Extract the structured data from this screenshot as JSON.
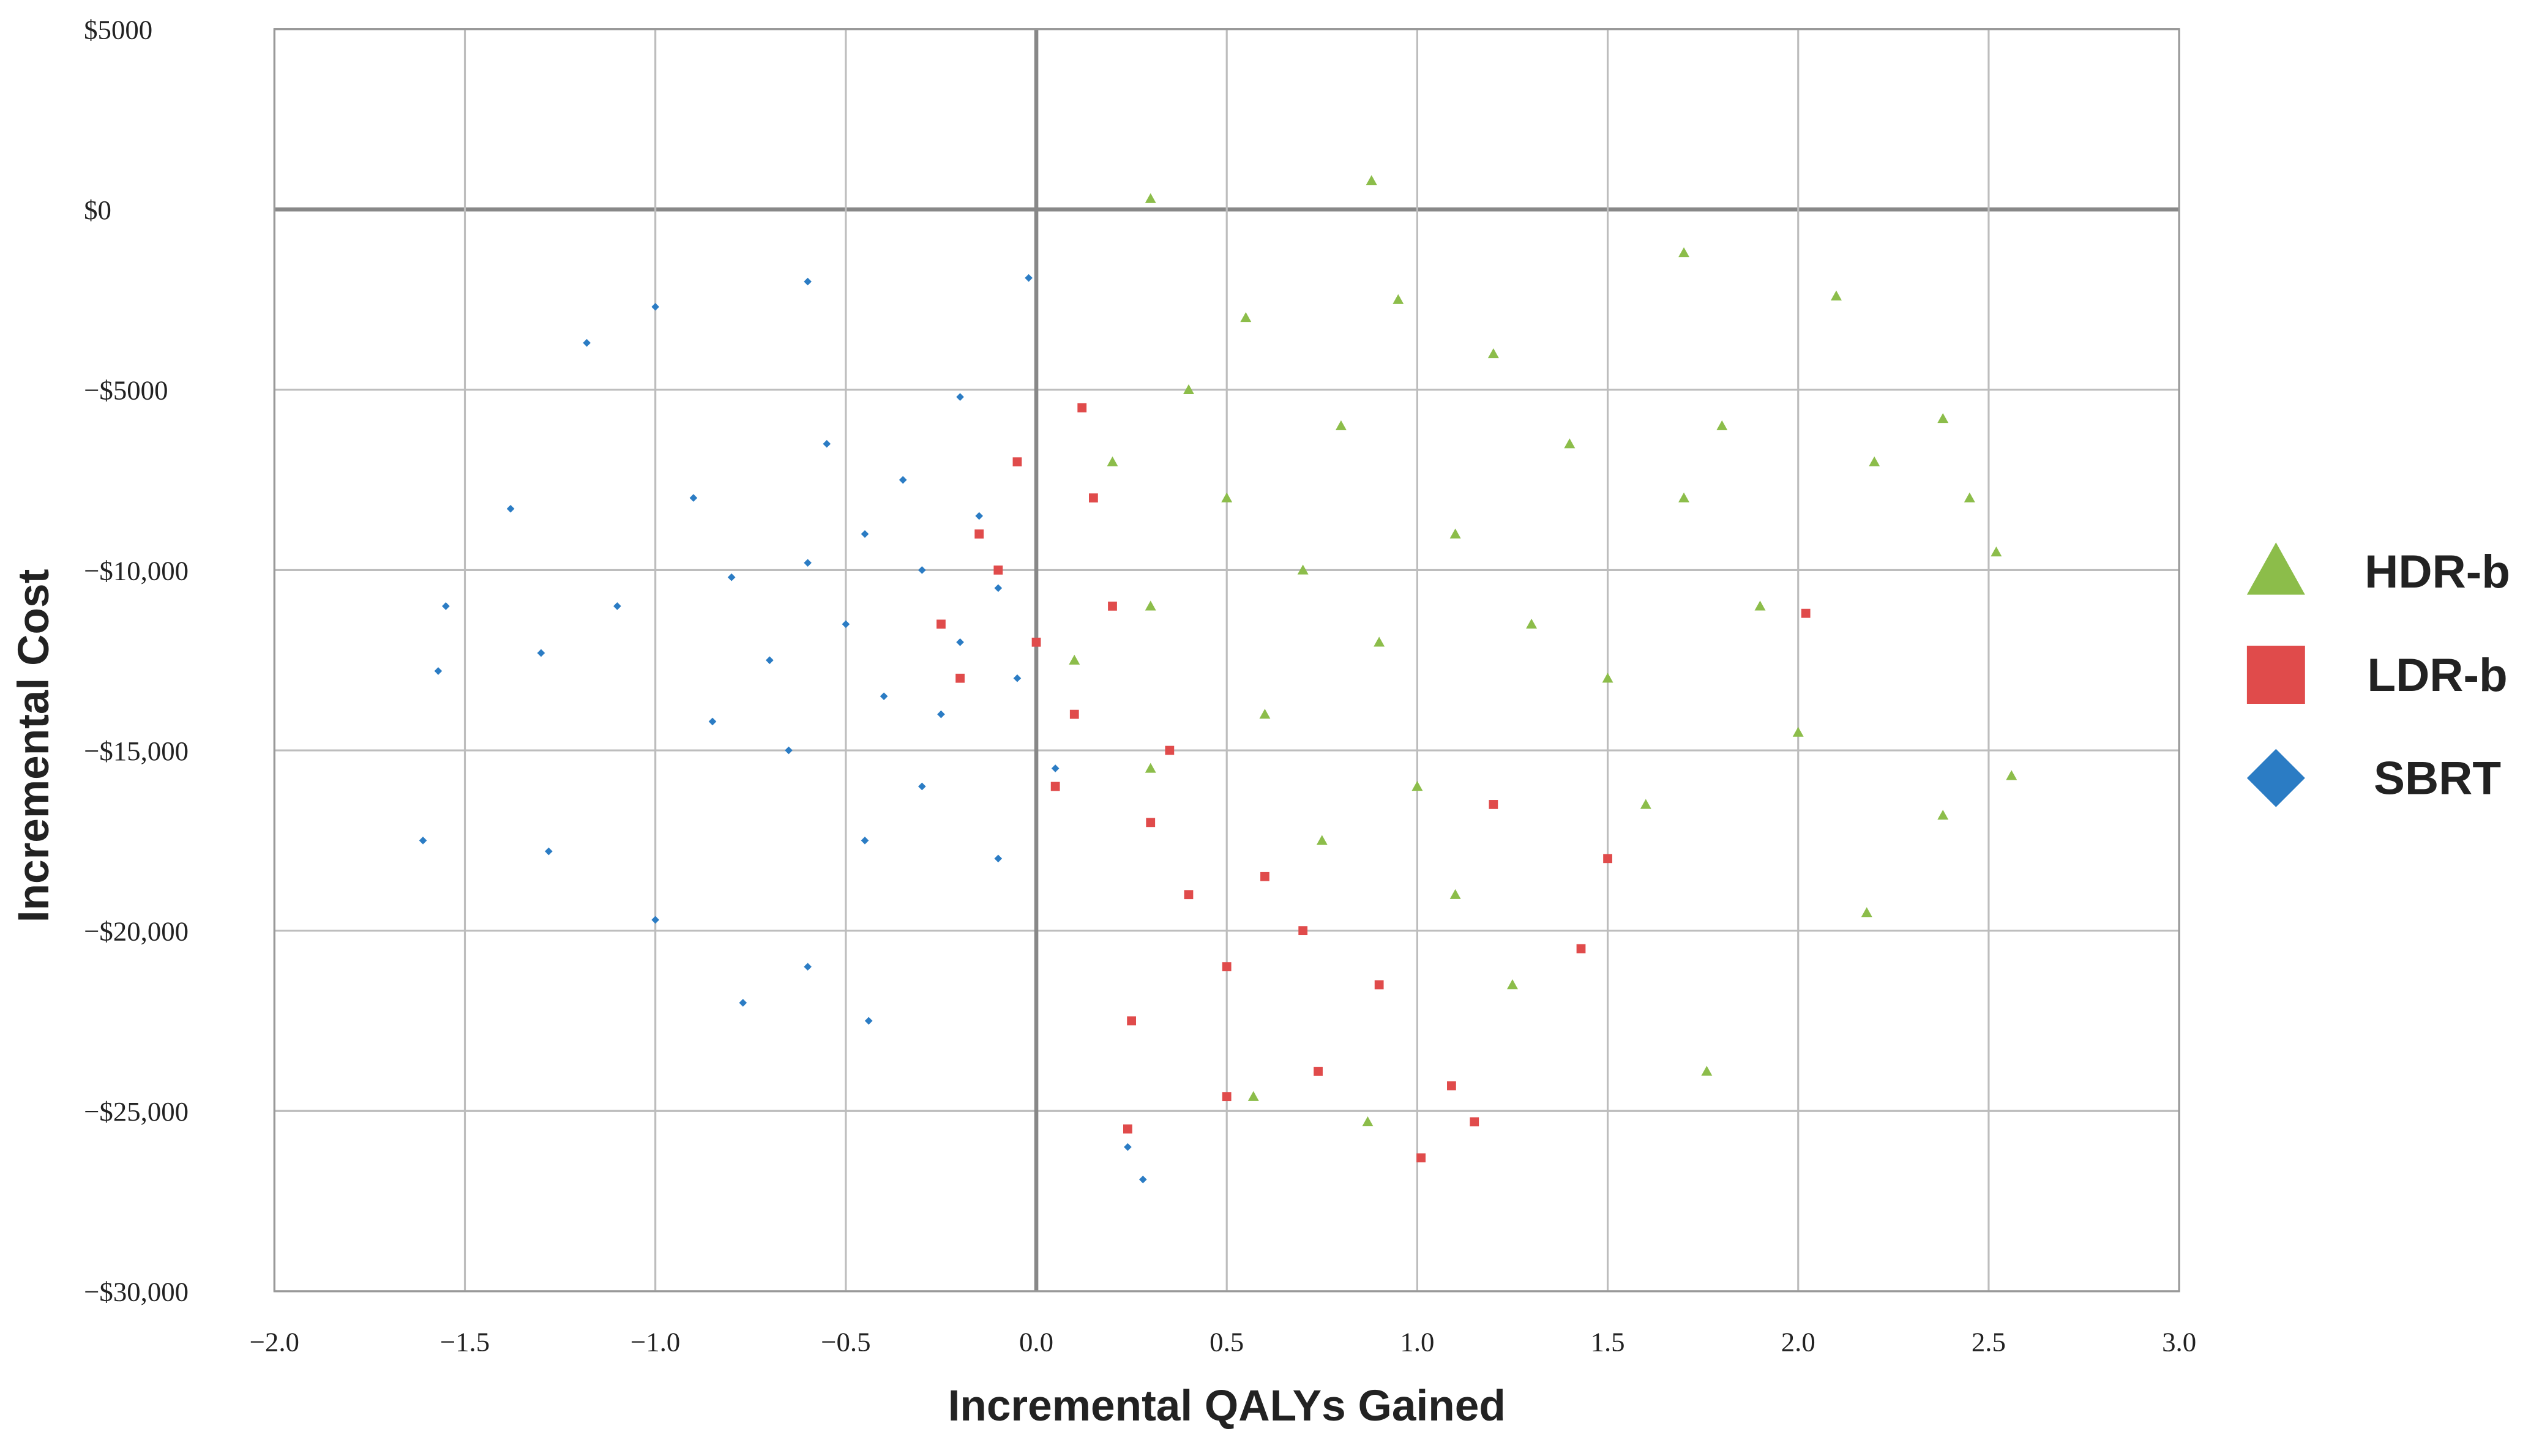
{
  "chart_data": {
    "type": "scatter",
    "x_label": "Incremental QALYs Gained",
    "y_label": "Incremental Cost",
    "xlim": [
      -2,
      3
    ],
    "ylim": [
      -30000,
      5000
    ],
    "xticks": [
      {
        "value": -2,
        "label": "−2.0"
      },
      {
        "value": -1.5,
        "label": "−1.5"
      },
      {
        "value": -1,
        "label": "−1.0"
      },
      {
        "value": -0.5,
        "label": "−0.5"
      },
      {
        "value": 0,
        "label": "0.0"
      },
      {
        "value": 0.5,
        "label": "0.5"
      },
      {
        "value": 1,
        "label": "1.0"
      },
      {
        "value": 1.5,
        "label": "1.5"
      },
      {
        "value": 2,
        "label": "2.0"
      },
      {
        "value": 2.5,
        "label": "2.5"
      },
      {
        "value": 3,
        "label": "3.0"
      }
    ],
    "yticks": [
      {
        "value": 5000,
        "label": "$5000"
      },
      {
        "value": 0,
        "label": "$0"
      },
      {
        "value": -5000,
        "label": "−$5000"
      },
      {
        "value": -10000,
        "label": "−$10,000"
      },
      {
        "value": -15000,
        "label": "−$15,000"
      },
      {
        "value": -20000,
        "label": "−$20,000"
      },
      {
        "value": -25000,
        "label": "−$25,000"
      },
      {
        "value": -30000,
        "label": "−$30,000"
      }
    ],
    "grid": true,
    "legend_position": "right",
    "series": [
      {
        "name": "HDR-b",
        "color": "#8cbd4a",
        "marker": "triangle",
        "x": [
          0.3,
          0.88,
          1.7,
          2.1,
          2.52,
          2.56,
          2.45,
          2.18,
          1.76,
          0.87,
          0.57,
          2.38,
          2.38,
          0.7,
          0.5,
          0.9,
          0.3,
          1.1,
          0.6,
          1.3,
          0.2,
          0.8,
          1.5,
          1.0,
          0.4,
          1.7,
          1.2,
          0.1,
          1.9,
          0.75,
          1.4,
          0.55,
          2.0,
          1.1,
          1.6,
          1.8,
          0.95,
          0.3,
          1.25,
          2.2
        ],
        "values": [
          300,
          800,
          -1200,
          -2400,
          -9500,
          -15700,
          -8000,
          -19500,
          -23900,
          -25300,
          -24600,
          -16800,
          -5800,
          -10000,
          -8000,
          -12000,
          -11000,
          -9000,
          -14000,
          -11500,
          -7000,
          -6000,
          -13000,
          -16000,
          -5000,
          -8000,
          -4000,
          -12500,
          -11000,
          -17500,
          -6500,
          -3000,
          -14500,
          -19000,
          -16500,
          -6000,
          -2500,
          -15500,
          -21500,
          -7000
        ]
      },
      {
        "name": "LDR-b",
        "color": "#e04b4b",
        "marker": "square",
        "x": [
          1.01,
          1.15,
          0.24,
          0.5,
          1.09,
          0.74,
          2.02,
          1.43,
          0.12,
          0,
          -0.1,
          0.1,
          0.2,
          -0.2,
          0.05,
          0.3,
          0.4,
          -0.15,
          0.5,
          0.15,
          0.6,
          -0.25,
          0.35,
          0.7,
          0.25,
          0.9,
          1.2,
          1.5,
          -0.05
        ],
        "values": [
          -26300,
          -25300,
          -25500,
          -24600,
          -24300,
          -23900,
          -11200,
          -20500,
          -5500,
          -12000,
          -10000,
          -14000,
          -11000,
          -13000,
          -16000,
          -17000,
          -19000,
          -9000,
          -21000,
          -8000,
          -18500,
          -11500,
          -15000,
          -20000,
          -22500,
          -21500,
          -16500,
          -18000,
          -7000
        ]
      },
      {
        "name": "SBRT",
        "color": "#2b7cc4",
        "marker": "diamond",
        "x": [
          -1.61,
          -1.55,
          -1.57,
          -1.28,
          -1.0,
          -0.77,
          -0.44,
          -0.6,
          -1.18,
          -1.0,
          -0.6,
          -0.02,
          0.28,
          0.24,
          -1.38,
          -1.3,
          -0.3,
          -0.45,
          -0.2,
          -0.5,
          -0.35,
          -0.6,
          -0.15,
          -0.25,
          -0.7,
          -0.4,
          -0.1,
          -0.55,
          -0.8,
          -0.3,
          -0.05,
          -0.9,
          -0.2,
          -0.65,
          -0.45,
          -0.1,
          0.05,
          -1.1,
          -0.85
        ],
        "values": [
          -17500,
          -11000,
          -12800,
          -17800,
          -19700,
          -22000,
          -22500,
          -21000,
          -3700,
          -2700,
          -2000,
          -1900,
          -26900,
          -26000,
          -8300,
          -12300,
          -10000,
          -9000,
          -12000,
          -11500,
          -7500,
          -9800,
          -8500,
          -14000,
          -12500,
          -13500,
          -10500,
          -6500,
          -10200,
          -16000,
          -13000,
          -8000,
          -5200,
          -15000,
          -17500,
          -18000,
          -15500,
          -11000,
          -14200
        ]
      }
    ]
  }
}
